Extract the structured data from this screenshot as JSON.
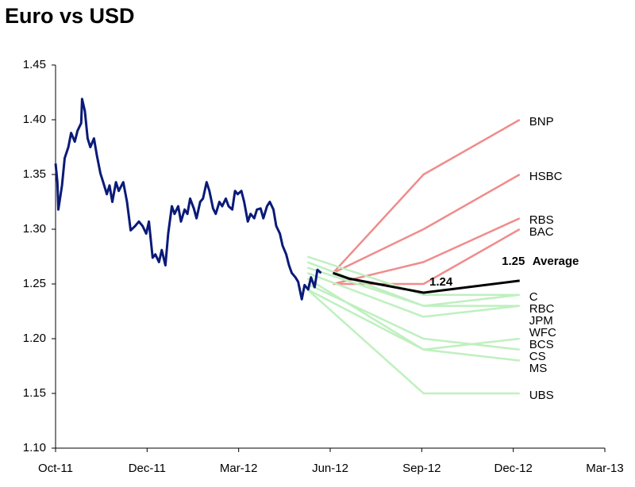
{
  "chart_data": {
    "type": "line",
    "title": "Euro vs USD",
    "xlim": [
      0,
      6
    ],
    "xticks": [
      {
        "value": 0,
        "label": "Oct-11"
      },
      {
        "value": 1,
        "label": "Dec-11"
      },
      {
        "value": 2,
        "label": "Mar-12"
      },
      {
        "value": 3,
        "label": "Jun-12"
      },
      {
        "value": 4,
        "label": "Sep-12"
      },
      {
        "value": 5,
        "label": "Dec-12"
      },
      {
        "value": 6,
        "label": "Mar-13"
      }
    ],
    "ylim": [
      1.1,
      1.45
    ],
    "yticks": [
      {
        "value": 1.1,
        "label": "1.10"
      },
      {
        "value": 1.15,
        "label": "1.15"
      },
      {
        "value": 1.2,
        "label": "1.20"
      },
      {
        "value": 1.25,
        "label": "1.25"
      },
      {
        "value": 1.3,
        "label": "1.30"
      },
      {
        "value": 1.35,
        "label": "1.35"
      },
      {
        "value": 1.4,
        "label": "1.40"
      },
      {
        "value": 1.45,
        "label": "1.45"
      }
    ],
    "grid": false,
    "series": [
      {
        "name": "BNP",
        "color": "#f08c8c",
        "x": [
          3.03,
          4.02,
          5.07
        ],
        "values": [
          1.26,
          1.35,
          1.4
        ]
      },
      {
        "name": "HSBC",
        "color": "#f08c8c",
        "x": [
          3.03,
          4.02,
          5.07
        ],
        "values": [
          1.26,
          1.3,
          1.35
        ]
      },
      {
        "name": "RBS",
        "color": "#f08c8c",
        "x": [
          3.03,
          4.02,
          5.07
        ],
        "values": [
          1.25,
          1.27,
          1.31
        ]
      },
      {
        "name": "BAC",
        "color": "#f08c8c",
        "x": [
          3.03,
          4.02,
          5.07
        ],
        "values": [
          1.25,
          1.25,
          1.3
        ]
      },
      {
        "name": "C",
        "color": "#bff0bf",
        "x": [
          2.75,
          4.02,
          5.07
        ],
        "values": [
          1.275,
          1.24,
          1.24
        ]
      },
      {
        "name": "RBC",
        "color": "#bff0bf",
        "x": [
          2.75,
          4.02,
          5.07
        ],
        "values": [
          1.27,
          1.23,
          1.24
        ]
      },
      {
        "name": "JPM",
        "color": "#bff0bf",
        "x": [
          2.75,
          4.02,
          5.07
        ],
        "values": [
          1.265,
          1.23,
          1.23
        ]
      },
      {
        "name": "WFC",
        "color": "#bff0bf",
        "x": [
          2.75,
          4.02,
          5.07
        ],
        "values": [
          1.26,
          1.22,
          1.23
        ]
      },
      {
        "name": "BCS",
        "color": "#bff0bf",
        "x": [
          2.75,
          4.02,
          5.07
        ],
        "values": [
          1.255,
          1.19,
          1.2
        ]
      },
      {
        "name": "CS",
        "color": "#bff0bf",
        "x": [
          2.75,
          4.02,
          5.07
        ],
        "values": [
          1.25,
          1.2,
          1.19
        ]
      },
      {
        "name": "MS",
        "color": "#bff0bf",
        "x": [
          2.75,
          4.02,
          5.07
        ],
        "values": [
          1.245,
          1.19,
          1.18
        ]
      },
      {
        "name": "UBS",
        "color": "#bff0bf",
        "x": [
          2.75,
          4.02,
          5.07
        ],
        "values": [
          1.245,
          1.15,
          1.15
        ]
      },
      {
        "name": "Average",
        "color": "#000000",
        "x": [
          3.03,
          3.2,
          4.02,
          5.07
        ],
        "values": [
          1.26,
          1.255,
          1.242,
          1.253
        ],
        "value_labels": [
          null,
          null,
          "1.24",
          "1.25"
        ]
      },
      {
        "color": "#0a1a78",
        "x": [
          0,
          0.02,
          0.03,
          0.07,
          0.1,
          0.14,
          0.17,
          0.21,
          0.24,
          0.28,
          0.29,
          0.32,
          0.35,
          0.38,
          0.42,
          0.45,
          0.49,
          0.52,
          0.56,
          0.59,
          0.62,
          0.66,
          0.69,
          0.74,
          0.78,
          0.82,
          0.87,
          0.91,
          0.95,
          0.99,
          1.02,
          1.06,
          1.09,
          1.13,
          1.16,
          1.2,
          1.23,
          1.27,
          1.3,
          1.34,
          1.37,
          1.41,
          1.44,
          1.47,
          1.51,
          1.54,
          1.58,
          1.61,
          1.65,
          1.68,
          1.72,
          1.75,
          1.79,
          1.82,
          1.86,
          1.89,
          1.93,
          1.96,
          1.99,
          2.03,
          2.06,
          2.1,
          2.13,
          2.17,
          2.2,
          2.24,
          2.27,
          2.31,
          2.34,
          2.38,
          2.41,
          2.45,
          2.48,
          2.52,
          2.55,
          2.58,
          2.62,
          2.65,
          2.69,
          2.72,
          2.76,
          2.79,
          2.83,
          2.86,
          2.9
        ],
        "values": [
          1.36,
          1.343,
          1.318,
          1.34,
          1.365,
          1.375,
          1.388,
          1.38,
          1.39,
          1.397,
          1.419,
          1.408,
          1.383,
          1.375,
          1.383,
          1.368,
          1.351,
          1.343,
          1.332,
          1.34,
          1.325,
          1.343,
          1.335,
          1.343,
          1.325,
          1.299,
          1.303,
          1.307,
          1.303,
          1.296,
          1.307,
          1.274,
          1.277,
          1.27,
          1.281,
          1.267,
          1.296,
          1.321,
          1.314,
          1.321,
          1.307,
          1.318,
          1.314,
          1.328,
          1.319,
          1.31,
          1.325,
          1.328,
          1.343,
          1.335,
          1.319,
          1.314,
          1.325,
          1.321,
          1.328,
          1.321,
          1.318,
          1.335,
          1.332,
          1.335,
          1.325,
          1.307,
          1.314,
          1.31,
          1.318,
          1.319,
          1.31,
          1.321,
          1.325,
          1.318,
          1.303,
          1.296,
          1.285,
          1.277,
          1.267,
          1.26,
          1.256,
          1.252,
          1.236,
          1.249,
          1.245,
          1.256,
          1.247,
          1.263,
          1.26
        ]
      }
    ]
  }
}
